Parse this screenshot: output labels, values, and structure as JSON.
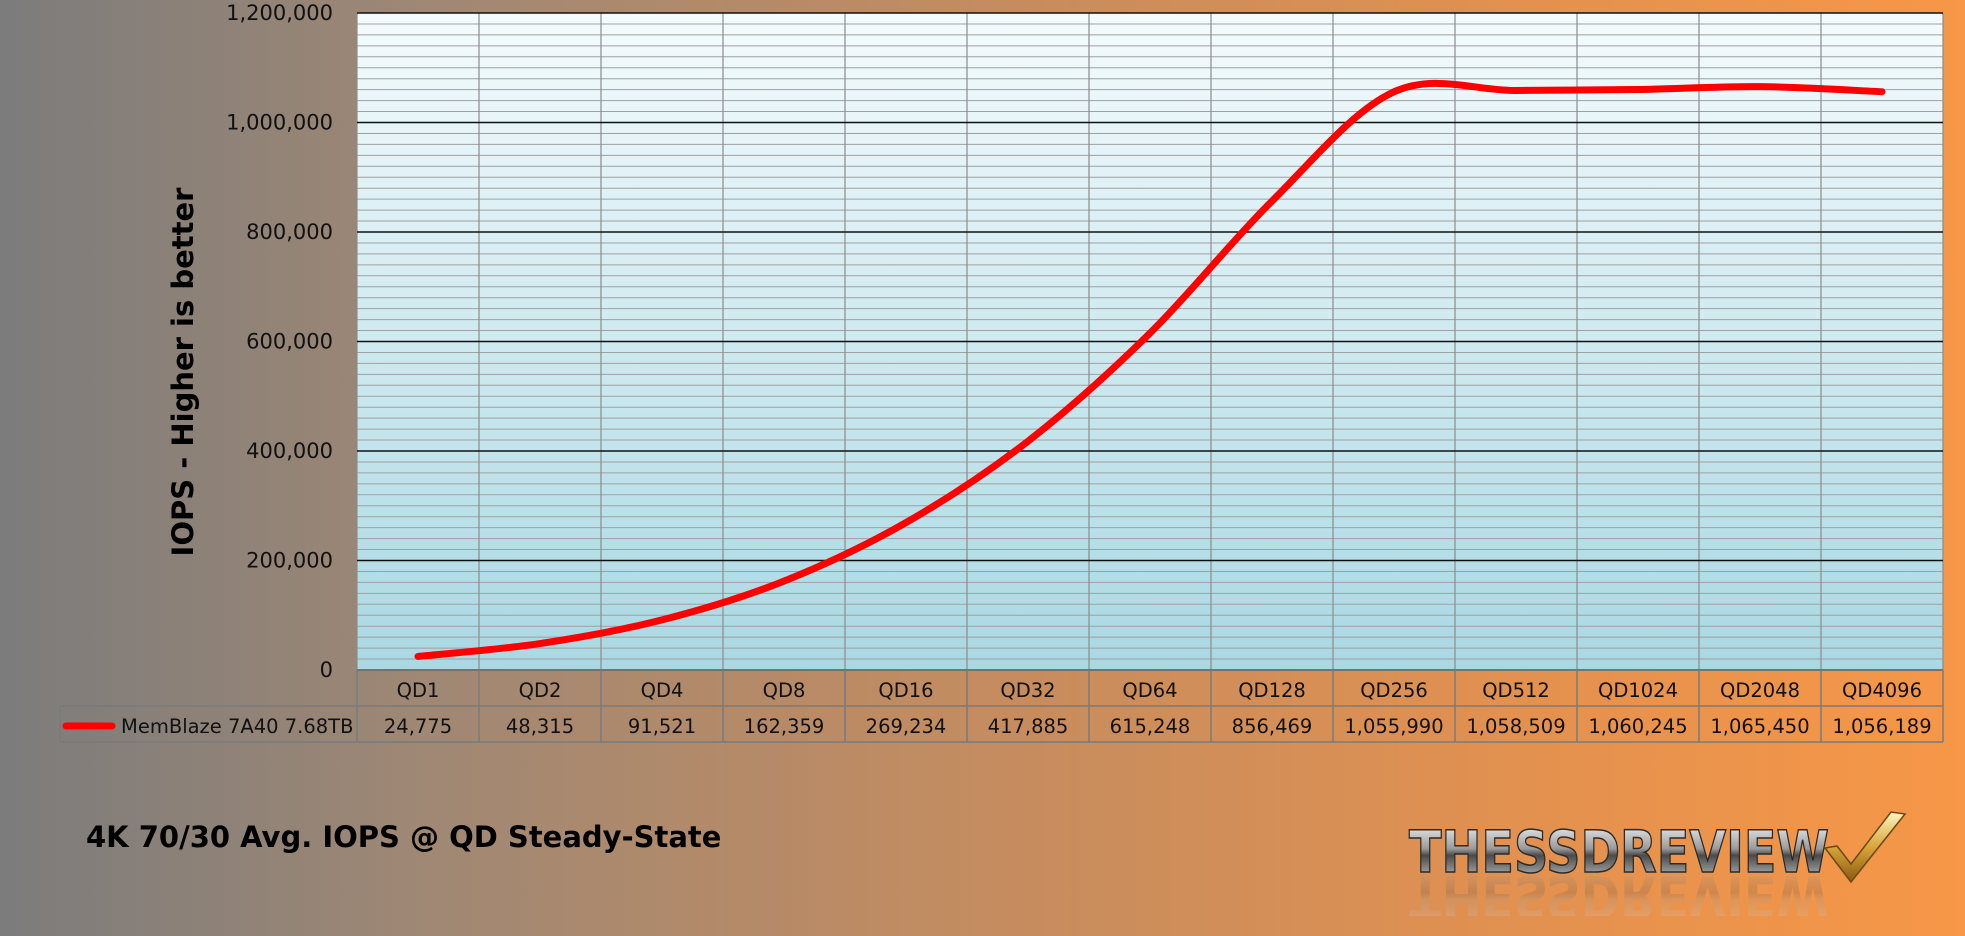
{
  "chart_data": {
    "type": "line",
    "title": "4K 70/30 Avg. IOPS @ QD Steady-State",
    "xlabel": "",
    "ylabel": "IOPS - Higher is better",
    "ylim": [
      0,
      1200000
    ],
    "yticks": [
      "0",
      "200,000",
      "400,000",
      "600,000",
      "800,000",
      "1,000,000",
      "1,200,000"
    ],
    "grid": true,
    "legend": "bottom-left data table",
    "categories": [
      "QD1",
      "QD2",
      "QD4",
      "QD8",
      "QD16",
      "QD32",
      "QD64",
      "QD128",
      "QD256",
      "QD512",
      "QD1024",
      "QD2048",
      "QD4096"
    ],
    "series": [
      {
        "name": "MemBlaze 7A40 7.68TB",
        "color": "#ff0000",
        "values": [
          24775,
          48315,
          91521,
          162359,
          269234,
          417885,
          615248,
          856469,
          1055990,
          1058509,
          1060245,
          1065450,
          1056189
        ],
        "value_labels": [
          "24,775",
          "48,315",
          "91,521",
          "162,359",
          "269,234",
          "417,885",
          "615,248",
          "856,469",
          "1,055,990",
          "1,058,509",
          "1,060,245",
          "1,065,450",
          "1,056,189"
        ]
      }
    ]
  },
  "colors": {
    "plot_top": "#f4fbfd",
    "plot_bottom": "#a9d8e3",
    "line": "#ff0000"
  },
  "logo": {
    "text": "THESSDREVIEW",
    "icon": "checkmark-icon"
  }
}
